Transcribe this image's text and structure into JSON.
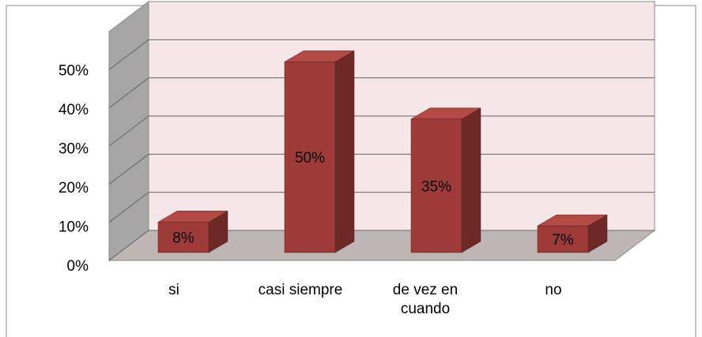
{
  "chart_data": {
    "type": "bar3d",
    "categories": [
      "si",
      "casi siempre",
      "de vez en cuando",
      "no"
    ],
    "values": [
      8,
      50,
      35,
      7
    ],
    "value_labels": [
      "8%",
      "50%",
      "35%",
      "7%"
    ],
    "color": "#9e3b39",
    "ylim": [
      0,
      60
    ],
    "yticks": [
      {
        "value": 0,
        "label": "0%"
      },
      {
        "value": 10,
        "label": "10%"
      },
      {
        "value": 20,
        "label": "20%"
      },
      {
        "value": 30,
        "label": "30%"
      },
      {
        "value": 40,
        "label": "40%"
      },
      {
        "value": 50,
        "label": "50%"
      }
    ],
    "grid": true
  }
}
